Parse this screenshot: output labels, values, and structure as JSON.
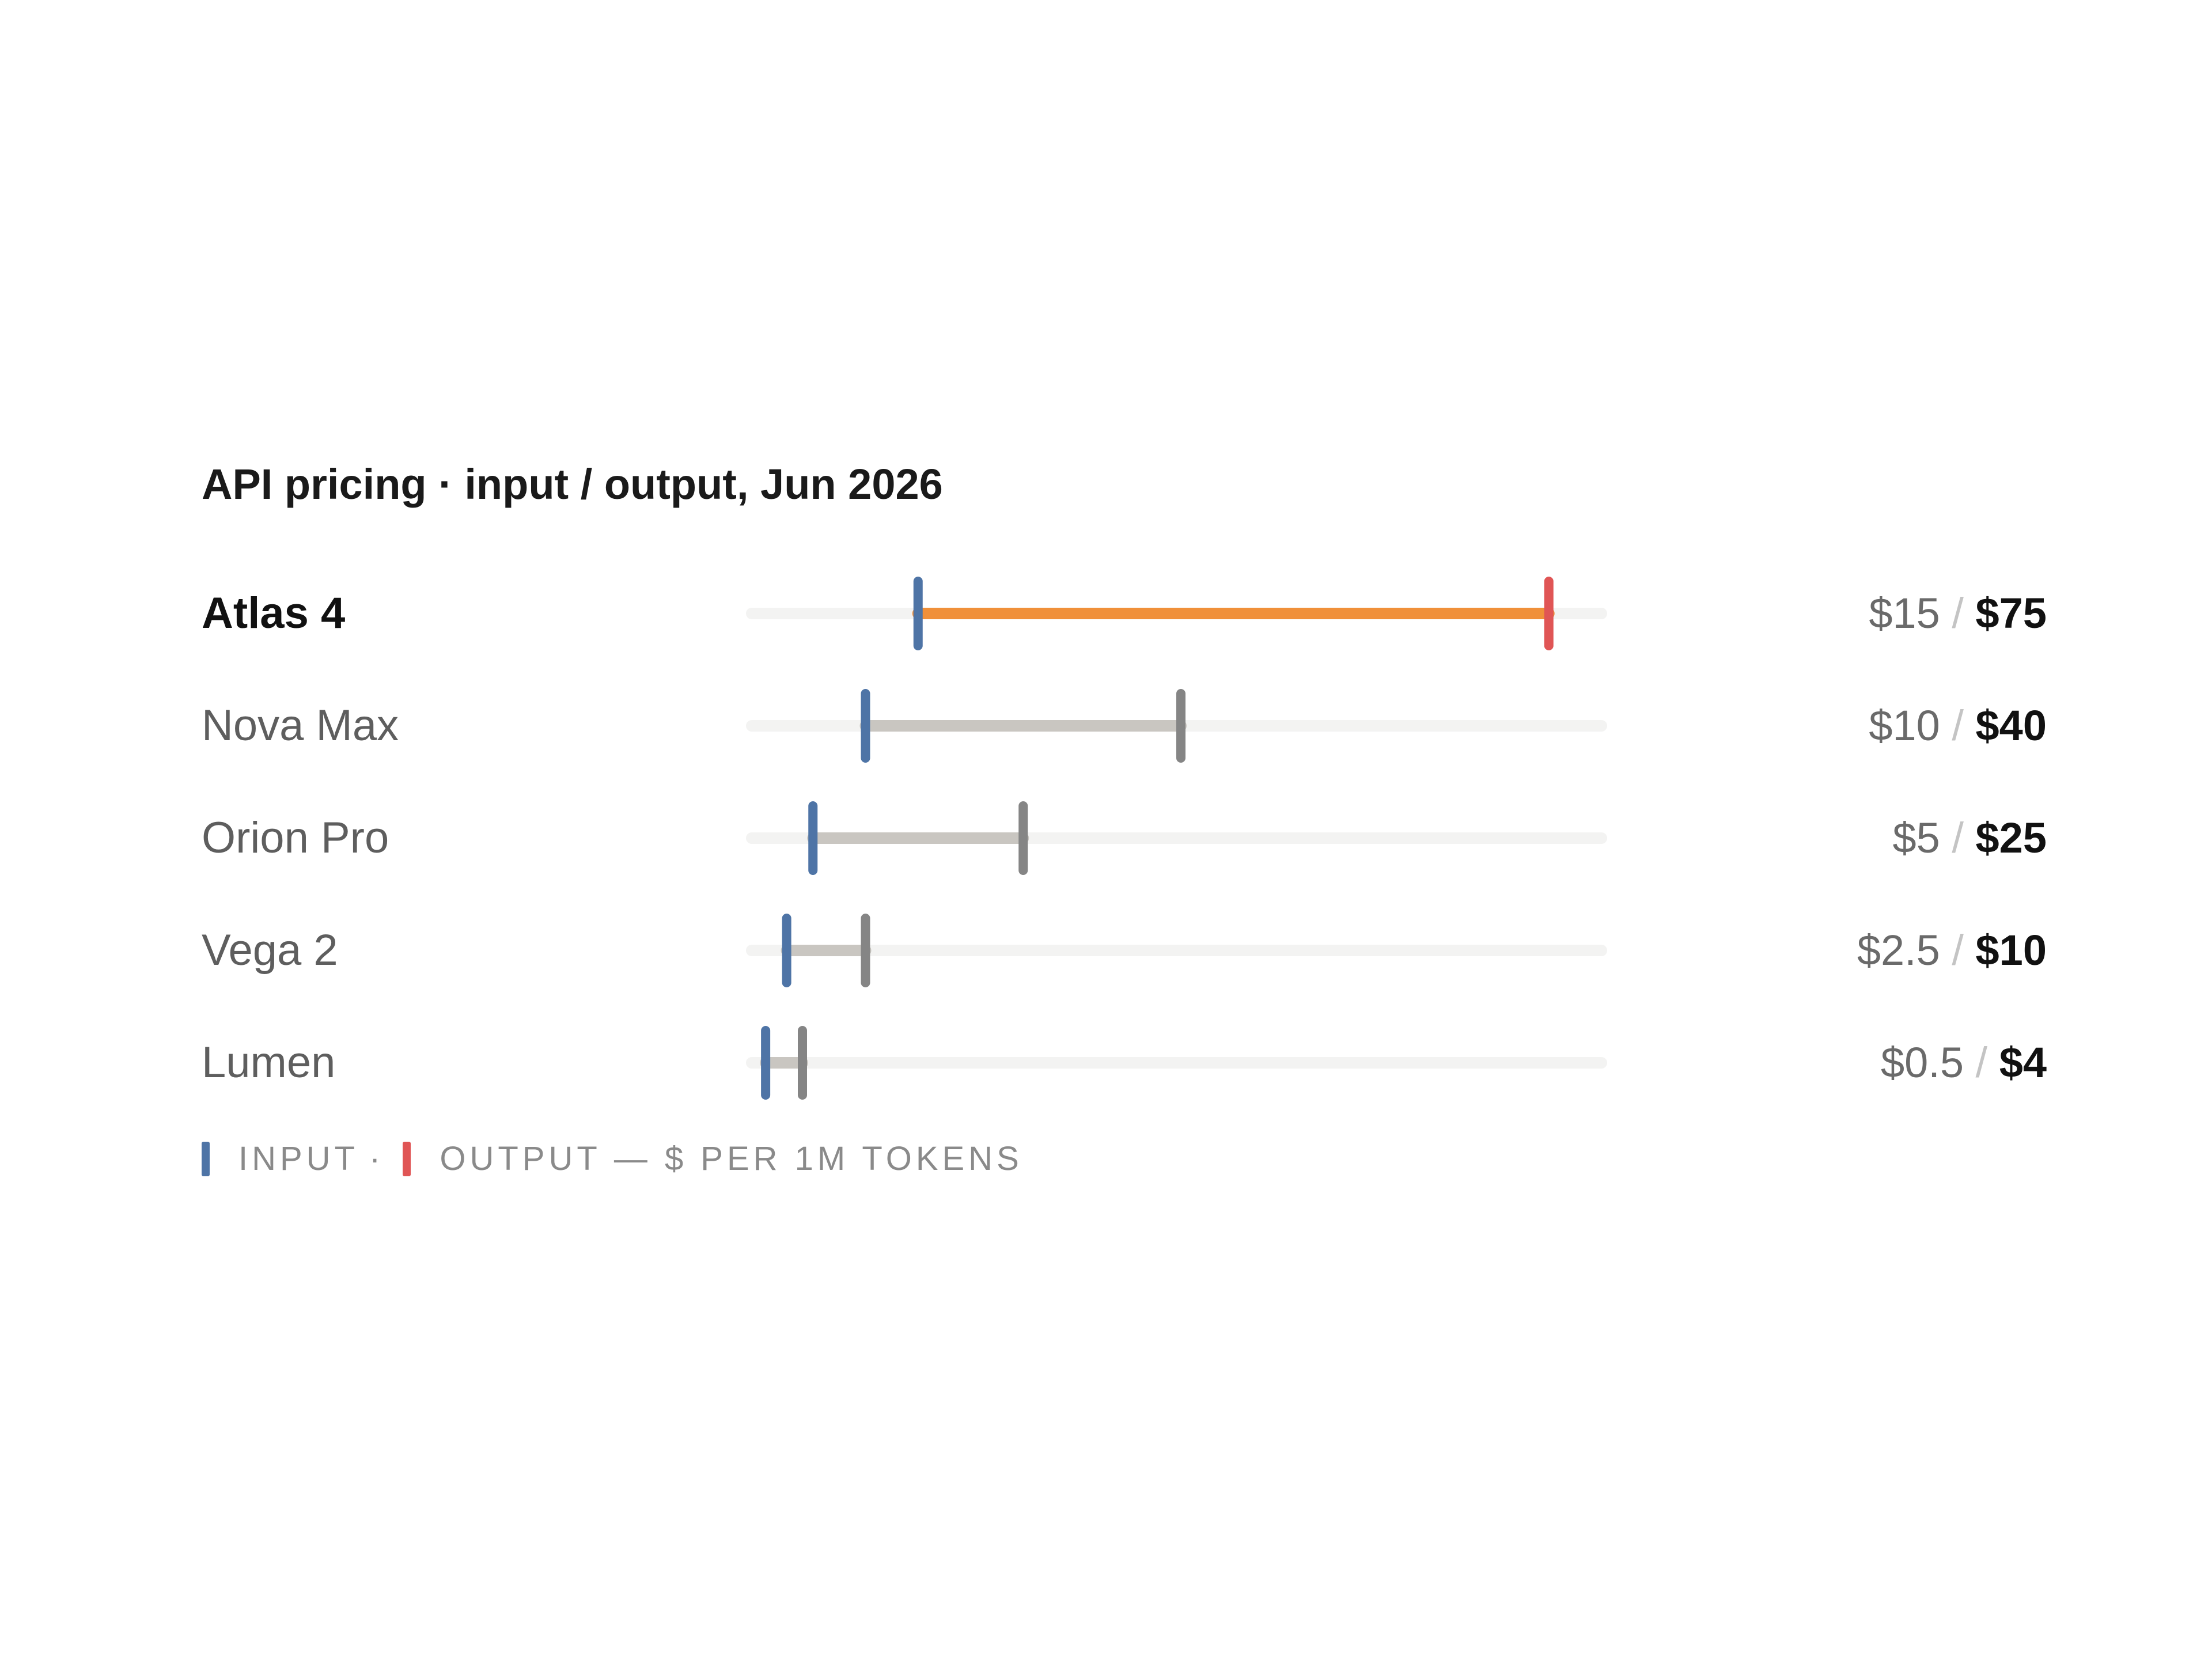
{
  "title": "API pricing · input / output, Jun 2026",
  "legend": {
    "input_label": "INPUT",
    "dot": "·",
    "output_label": "OUTPUT — $ PER 1M TOKENS"
  },
  "colors": {
    "input_tick": "#4e74a6",
    "output_tick_highlight": "#e05555",
    "output_tick": "#858585",
    "range_highlight": "#f0903a",
    "range": "#c9c6c1",
    "track": "#f3f3f2"
  },
  "chart_data": {
    "type": "range-dumbbell",
    "title": "API pricing · input / output, Jun 2026",
    "xlim": [
      0,
      80
    ],
    "unit": "$ per 1M tokens",
    "series": [
      {
        "name": "INPUT"
      },
      {
        "name": "OUTPUT"
      }
    ],
    "rows": [
      {
        "model": "Atlas 4",
        "input": 15,
        "output": 75,
        "input_text": "$15",
        "output_text": "$75",
        "highlight": true
      },
      {
        "model": "Nova Max",
        "input": 10,
        "output": 40,
        "input_text": "$10",
        "output_text": "$40",
        "highlight": false
      },
      {
        "model": "Orion Pro",
        "input": 5,
        "output": 25,
        "input_text": "$5",
        "output_text": "$25",
        "highlight": false
      },
      {
        "model": "Vega 2",
        "input": 2.5,
        "output": 10,
        "input_text": "$2.5",
        "output_text": "$10",
        "highlight": false
      },
      {
        "model": "Lumen",
        "input": 0.5,
        "output": 4,
        "input_text": "$0.5",
        "output_text": "$4",
        "highlight": false
      }
    ]
  }
}
